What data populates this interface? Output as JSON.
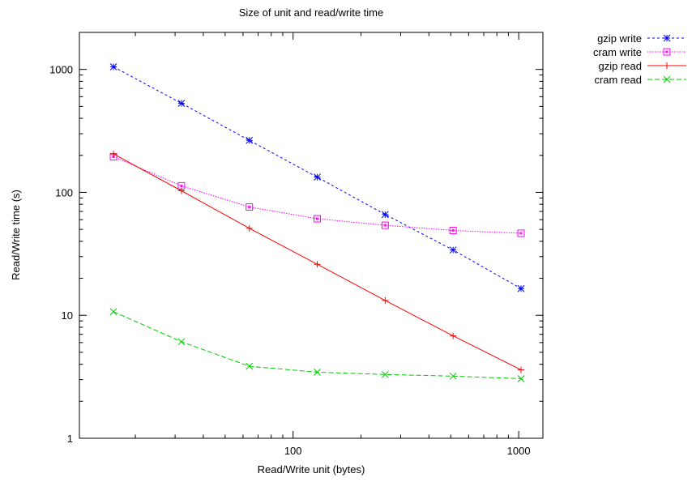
{
  "chart_data": {
    "type": "line",
    "title": "Size of unit and read/write time",
    "xlabel": "Read/Write unit (bytes)",
    "ylabel": "Read/Write time (s)",
    "x_scale": "log",
    "y_scale": "log",
    "xlim": [
      11.3,
      1280
    ],
    "ylim": [
      1,
      2000
    ],
    "x_ticks": [
      {
        "value": 100,
        "label": "100"
      },
      {
        "value": 1000,
        "label": "1000"
      }
    ],
    "y_ticks": [
      {
        "value": 1,
        "label": "1"
      },
      {
        "value": 10,
        "label": "10"
      },
      {
        "value": 100,
        "label": "100"
      },
      {
        "value": 1000,
        "label": "1000"
      }
    ],
    "grid": false,
    "legend_position": "outside-top-right",
    "x": [
      16,
      32,
      64,
      128,
      256,
      512,
      1024
    ],
    "series": [
      {
        "name": "gzip write",
        "color": "#0000ff",
        "line": "dotted",
        "marker": "asterisk",
        "values": [
          1050,
          530,
          265,
          133,
          66,
          34,
          16.5
        ]
      },
      {
        "name": "cram write",
        "color": "#ff00ff",
        "line": "dotted-fine",
        "marker": "open-square",
        "values": [
          195,
          113,
          76,
          61,
          54,
          49,
          46.5
        ]
      },
      {
        "name": "gzip read",
        "color": "#ff0000",
        "line": "solid",
        "marker": "plus",
        "values": [
          205,
          103,
          51,
          26,
          13.2,
          6.8,
          3.6
        ]
      },
      {
        "name": "cram read",
        "color": "#00cc00",
        "line": "dashed",
        "marker": "x",
        "values": [
          10.7,
          6.1,
          3.85,
          3.45,
          3.3,
          3.2,
          3.05
        ]
      }
    ]
  }
}
